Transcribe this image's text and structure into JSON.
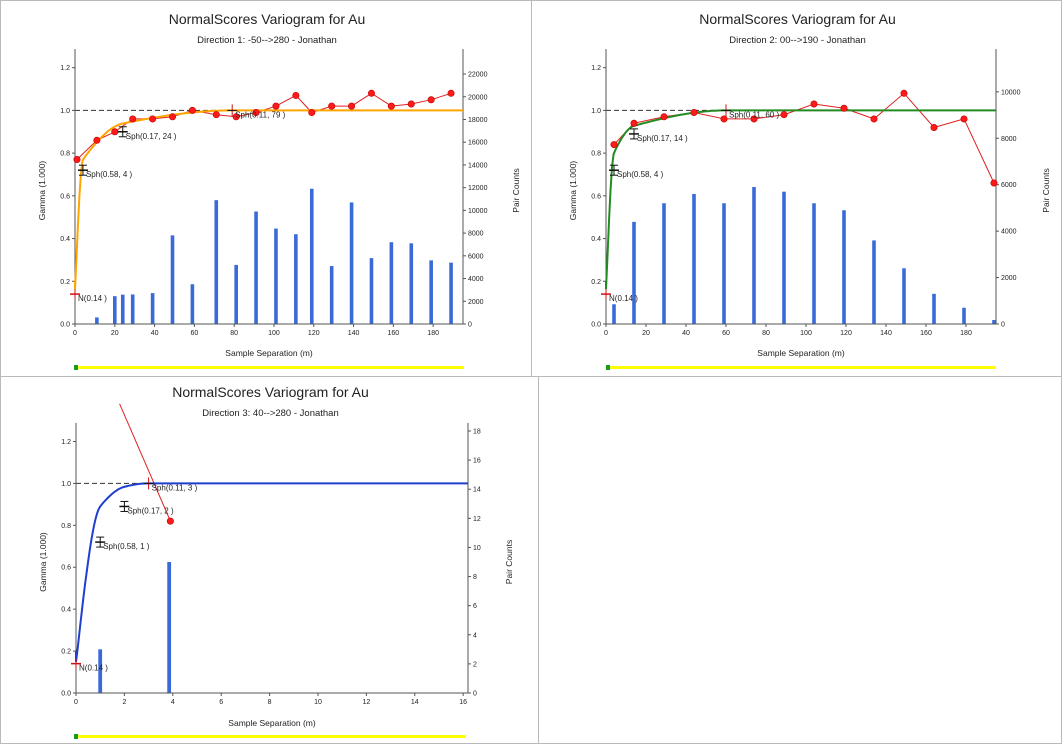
{
  "chart_data": [
    {
      "type": "line",
      "title": "NormalScores  Variogram for Au",
      "subtitle": "Direction 1: -50-->280 - Jonathan",
      "xlabel": "Sample Separation (m)",
      "ylabel": "Gamma (1.000)",
      "y2label": "Pair Counts",
      "xlim": [
        0,
        195
      ],
      "ylim": [
        0,
        1.25
      ],
      "y2lim": [
        0,
        23500
      ],
      "xticks": [
        0,
        20,
        40,
        60,
        80,
        100,
        120,
        140,
        160,
        180
      ],
      "yticks": [
        0,
        0.2,
        0.4,
        0.6,
        0.8,
        1.0,
        1.2
      ],
      "y2ticks": [
        0,
        2000,
        4000,
        6000,
        8000,
        10000,
        12000,
        14000,
        16000,
        18000,
        20000,
        22000
      ],
      "sill": 1.0,
      "model_color": "#ffa500",
      "model": {
        "nugget": 0.14,
        "structures": [
          {
            "c": 0.58,
            "a": 4
          },
          {
            "c": 0.17,
            "a": 24
          },
          {
            "c": 0.11,
            "a": 79
          }
        ]
      },
      "experimental": {
        "x": [
          1,
          11,
          20,
          29,
          39,
          49,
          59,
          71,
          81,
          91,
          101,
          111,
          119,
          129,
          139,
          149,
          159,
          169,
          179,
          189
        ],
        "y": [
          0.77,
          0.86,
          0.9,
          0.96,
          0.96,
          0.97,
          1.0,
          0.98,
          0.97,
          0.99,
          1.02,
          1.07,
          0.99,
          1.02,
          1.02,
          1.08,
          1.02,
          1.03,
          1.05,
          1.08
        ]
      },
      "pair_counts": {
        "x": [
          11,
          20,
          24,
          29,
          39,
          49,
          59,
          71,
          81,
          91,
          101,
          111,
          119,
          129,
          139,
          149,
          159,
          169,
          179,
          189
        ],
        "y": [
          580,
          2450,
          2580,
          2600,
          2720,
          7800,
          3500,
          10900,
          5200,
          9900,
          8400,
          7900,
          11900,
          5100,
          10700,
          5800,
          7200,
          7100,
          5600,
          5400
        ]
      },
      "annotations": [
        {
          "label": "N(0.14 )",
          "x": 0,
          "y": 0.14
        },
        {
          "label": "Sph(0.58, 4 )",
          "x": 4,
          "y": 0.72
        },
        {
          "label": "Sph(0.17, 24 )",
          "x": 24,
          "y": 0.9
        },
        {
          "label": "Sph(0.11, 79 )",
          "x": 79,
          "y": 1.0
        }
      ]
    },
    {
      "type": "line",
      "title": "NormalScores  Variogram for Au",
      "subtitle": "Direction 2: 00-->190 - Jonathan",
      "xlabel": "Sample Separation (m)",
      "ylabel": "Gamma (1.000)",
      "y2label": "Pair Counts",
      "xlim": [
        0,
        195
      ],
      "ylim": [
        0,
        1.25
      ],
      "y2lim": [
        0,
        11500
      ],
      "xticks": [
        0,
        20,
        40,
        60,
        80,
        100,
        120,
        140,
        160,
        180
      ],
      "yticks": [
        0,
        0.2,
        0.4,
        0.6,
        0.8,
        1.0,
        1.2
      ],
      "y2ticks": [
        0,
        2000,
        4000,
        6000,
        8000,
        10000
      ],
      "sill": 1.0,
      "model_color": "#228b22",
      "model": {
        "nugget": 0.14,
        "structures": [
          {
            "c": 0.58,
            "a": 4
          },
          {
            "c": 0.17,
            "a": 14
          },
          {
            "c": 0.11,
            "a": 60
          }
        ]
      },
      "experimental": {
        "x": [
          4,
          14,
          29,
          44,
          59,
          74,
          89,
          104,
          119,
          134,
          149,
          164,
          179,
          194
        ],
        "y": [
          0.84,
          0.94,
          0.97,
          0.99,
          0.96,
          0.96,
          0.98,
          1.03,
          1.01,
          0.96,
          1.08,
          0.92,
          0.96,
          0.66
        ]
      },
      "pair_counts": {
        "x": [
          4,
          14,
          29,
          44,
          59,
          74,
          89,
          104,
          119,
          134,
          149,
          164,
          179,
          194
        ],
        "y": [
          850,
          4400,
          5200,
          5600,
          5200,
          5900,
          5700,
          5200,
          4900,
          3600,
          2400,
          1300,
          700,
          170
        ]
      },
      "annotations": [
        {
          "label": "N(0.14 )",
          "x": 0,
          "y": 0.14
        },
        {
          "label": "Sph(0.58, 4 )",
          "x": 4,
          "y": 0.72
        },
        {
          "label": "Sph(0.17, 14 )",
          "x": 14,
          "y": 0.89
        },
        {
          "label": "Sph(0.11, 60 )",
          "x": 60,
          "y": 1.0
        }
      ]
    },
    {
      "type": "line",
      "title": "NormalScores  Variogram for Au",
      "subtitle": "Direction 3: 40-->280 - Jonathan",
      "xlabel": "Sample Separation (m)",
      "ylabel": "Gamma (1.000)",
      "y2label": "Pair Counts",
      "xlim": [
        0,
        16.2
      ],
      "ylim": [
        0,
        1.25
      ],
      "y2lim": [
        0,
        18
      ],
      "xticks": [
        0,
        2,
        4,
        6,
        8,
        10,
        12,
        14,
        16
      ],
      "yticks": [
        0,
        0.2,
        0.4,
        0.6,
        0.8,
        1.0,
        1.2
      ],
      "y2ticks": [
        0,
        2,
        4,
        6,
        8,
        10,
        12,
        14,
        16,
        18
      ],
      "sill": 1.0,
      "model_color": "#1f3fd0",
      "model": {
        "nugget": 0.14,
        "structures": [
          {
            "c": 0.58,
            "a": 1
          },
          {
            "c": 0.17,
            "a": 2
          },
          {
            "c": 0.11,
            "a": 3
          }
        ]
      },
      "experimental": {
        "x": [
          3.9
        ],
        "y": [
          0.82
        ]
      },
      "trend_line": {
        "x": [
          1.8,
          3.9
        ],
        "y": [
          1.38,
          0.82
        ]
      },
      "pair_counts": {
        "x": [
          1.0,
          3.85
        ],
        "y": [
          3,
          9
        ]
      },
      "annotations": [
        {
          "label": "N(0.14 )",
          "x": 0,
          "y": 0.14
        },
        {
          "label": "Sph(0.58, 1 )",
          "x": 1,
          "y": 0.72
        },
        {
          "label": "Sph(0.17, 2 )",
          "x": 2,
          "y": 0.89
        },
        {
          "label": "Sph(0.11, 3 )",
          "x": 3,
          "y": 1.0
        }
      ]
    }
  ]
}
